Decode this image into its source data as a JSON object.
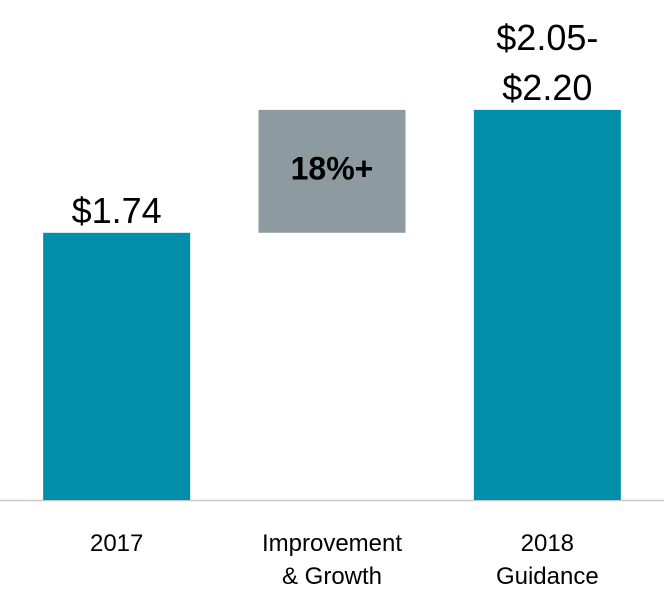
{
  "chart_data": {
    "type": "waterfall",
    "categories": [
      "2017",
      "Improvement\n& Growth",
      "2018\nGuidance"
    ],
    "values": [
      1.74,
      null,
      2.2
    ],
    "value_labels": [
      "$1.74",
      null,
      "$2.05-\n$2.20"
    ],
    "annotation": "18%+",
    "color": "#008ea9",
    "bridge_color": "#8d9ba1",
    "ylim": [
      0.74,
      2.6
    ]
  }
}
